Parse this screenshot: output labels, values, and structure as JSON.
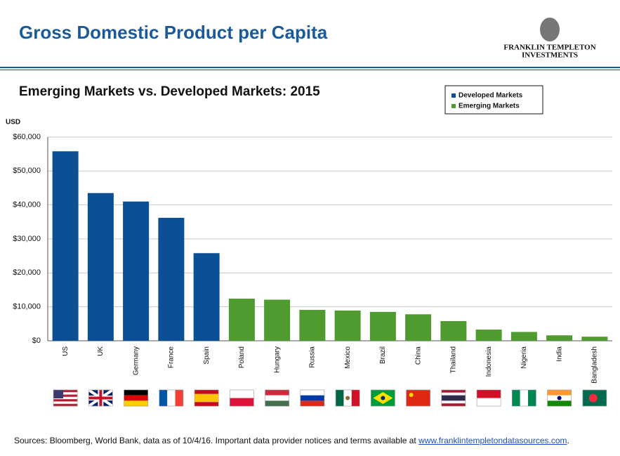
{
  "header": {
    "title": "Gross Domestic Product per Capita",
    "logo_line1": "FRANKLIN TEMPLETON",
    "logo_line2": "INVESTMENTS"
  },
  "chart_data": {
    "type": "bar",
    "title": "Emerging Markets vs. Developed Markets: 2015",
    "y_label": "USD",
    "categories": [
      "US",
      "UK",
      "Germany",
      "France",
      "Spain",
      "Poland",
      "Hungary",
      "Russia",
      "Mexico",
      "Brazil",
      "China",
      "Thailand",
      "Indonesia",
      "Nigeria",
      "India",
      "Bangladesh"
    ],
    "series": [
      {
        "name": "Developed Markets",
        "color": "#0b4f95",
        "values": [
          55800,
          43500,
          41000,
          36200,
          25800,
          null,
          null,
          null,
          null,
          null,
          null,
          null,
          null,
          null,
          null,
          null
        ]
      },
      {
        "name": "Emerging Markets",
        "color": "#4f9b30",
        "values": [
          null,
          null,
          null,
          null,
          null,
          12400,
          12100,
          9100,
          8900,
          8500,
          7800,
          5800,
          3300,
          2600,
          1600,
          1200
        ]
      }
    ],
    "ylim": [
      0,
      60000
    ],
    "yticks": [
      {
        "value": 0,
        "label": "$0"
      },
      {
        "value": 10000,
        "label": "$10,000"
      },
      {
        "value": 20000,
        "label": "$20,000"
      },
      {
        "value": 30000,
        "label": "$30,000"
      },
      {
        "value": 40000,
        "label": "$40,000"
      },
      {
        "value": 50000,
        "label": "$50,000"
      },
      {
        "value": 60000,
        "label": "$60,000"
      }
    ],
    "grid": true,
    "legend": "top-right"
  },
  "footer": {
    "source": "Sources: Bloomberg, World Bank, data as of 10/4/16. Important data provider notices and terms available at ",
    "link": "www.franklintempletondatasources.com",
    "end": "."
  }
}
